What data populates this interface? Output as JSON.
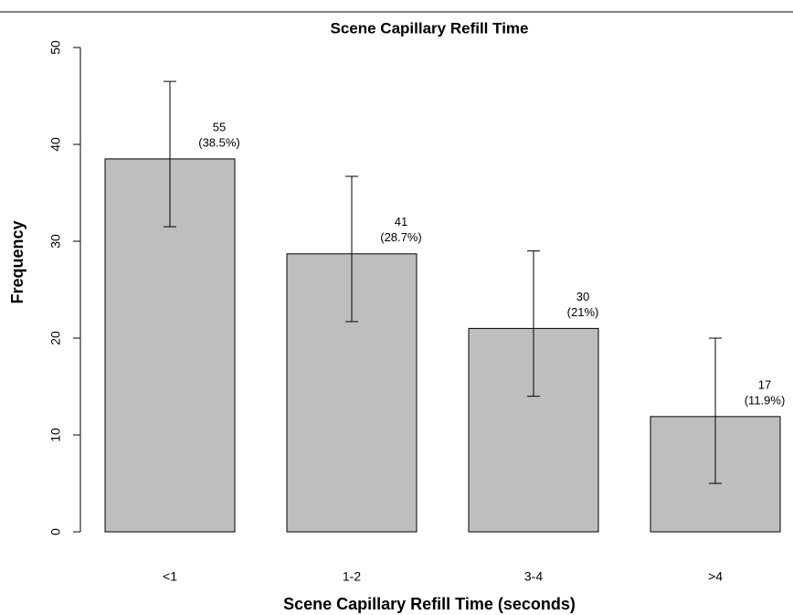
{
  "chart_data": {
    "type": "bar",
    "title": "Scene Capillary Refill Time",
    "xlabel": "Scene Capillary Refill Time (seconds)",
    "ylabel": "Frequency",
    "categories": [
      "<1",
      "1-2",
      "3-4",
      ">4"
    ],
    "values": [
      38.5,
      28.7,
      21,
      11.9
    ],
    "value_labels": [
      "(38.5%)",
      "(28.7%)",
      "(21%)",
      "(11.9%)"
    ],
    "counts": [
      55,
      41,
      30,
      17
    ],
    "ci_low": [
      31.5,
      21.7,
      14,
      5
    ],
    "ci_high": [
      46.5,
      36.7,
      29,
      20
    ],
    "color": "#bebebe",
    "ylim": [
      0,
      50
    ],
    "yticks": [
      0,
      10,
      20,
      30,
      40,
      50
    ]
  }
}
